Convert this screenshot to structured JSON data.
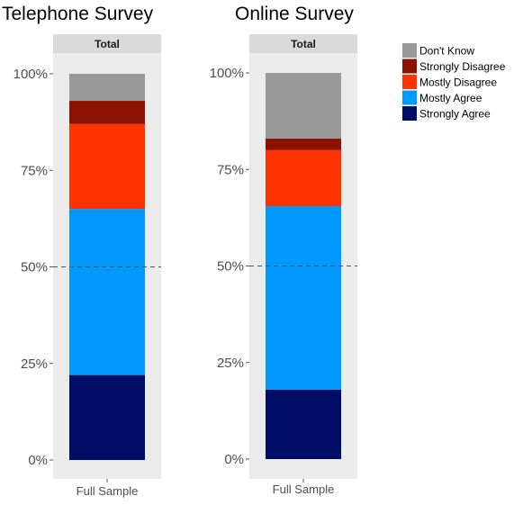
{
  "chart_data": [
    {
      "type": "bar",
      "stacked": true,
      "title": "Telephone Survey",
      "facet_label": "Total",
      "categories": [
        "Full Sample"
      ],
      "y_ticks": [
        "0%",
        "25%",
        "50%",
        "75%",
        "100%"
      ],
      "ylim": [
        0,
        1
      ],
      "reference_line": 0.5,
      "series": [
        {
          "name": "Strongly Agree",
          "values": [
            0.22
          ]
        },
        {
          "name": "Mostly Agree",
          "values": [
            0.43
          ]
        },
        {
          "name": "Mostly Disagree",
          "values": [
            0.22
          ]
        },
        {
          "name": "Strongly Disagree",
          "values": [
            0.06
          ]
        },
        {
          "name": "Don't Know",
          "values": [
            0.07
          ]
        }
      ]
    },
    {
      "type": "bar",
      "stacked": true,
      "title": "Online Survey",
      "facet_label": "Total",
      "categories": [
        "Full Sample"
      ],
      "y_ticks": [
        "0%",
        "25%",
        "50%",
        "75%",
        "100%"
      ],
      "ylim": [
        0,
        1
      ],
      "reference_line": 0.5,
      "series": [
        {
          "name": "Strongly Agree",
          "values": [
            0.18
          ]
        },
        {
          "name": "Mostly Agree",
          "values": [
            0.475
          ]
        },
        {
          "name": "Mostly Disagree",
          "values": [
            0.145
          ]
        },
        {
          "name": "Strongly Disagree",
          "values": [
            0.03
          ]
        },
        {
          "name": "Don't Know",
          "values": [
            0.17
          ]
        }
      ]
    }
  ],
  "legend": {
    "position": "top-right",
    "items": [
      {
        "name": "Don't Know",
        "color": "#999999"
      },
      {
        "name": "Strongly Disagree",
        "color": "#8b1100"
      },
      {
        "name": "Mostly Disagree",
        "color": "#ff3300"
      },
      {
        "name": "Mostly Agree",
        "color": "#0099ff"
      },
      {
        "name": "Strongly Agree",
        "color": "#000d66"
      }
    ]
  },
  "colors": {
    "Strongly Agree": "#000d66",
    "Mostly Agree": "#0099ff",
    "Mostly Disagree": "#ff3300",
    "Strongly Disagree": "#8b1100",
    "Don't Know": "#999999",
    "panel_bg": "#ebebeb",
    "strip_bg": "#d9d9d9"
  }
}
